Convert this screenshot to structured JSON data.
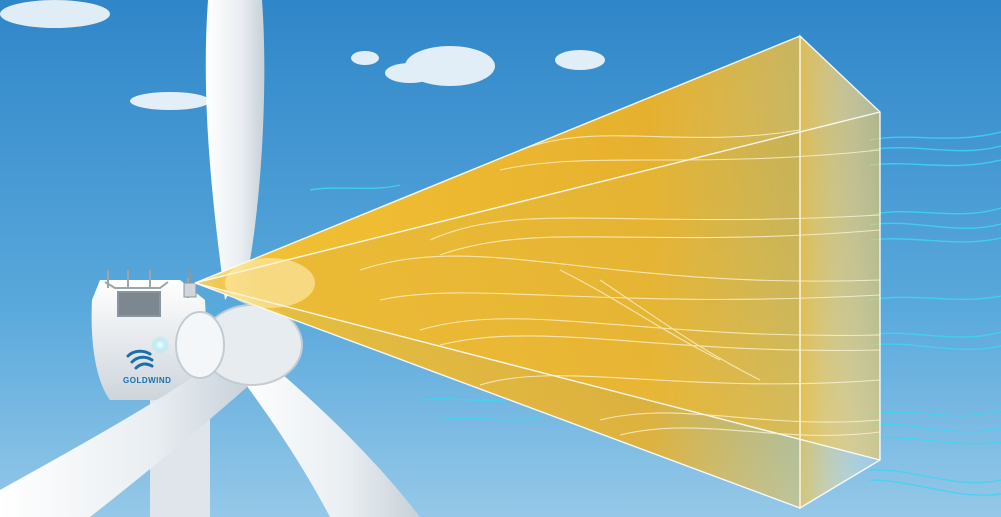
{
  "scene": {
    "logo": {
      "text": "GOLDWIND",
      "color": "#1a6fa8"
    },
    "colors": {
      "sky_top": "#2f86c8",
      "sky_bottom": "#8cc4e6",
      "beam": "#f0b020",
      "wind_streams": "#3fd6f0",
      "turbine": "#eef1f3"
    }
  }
}
